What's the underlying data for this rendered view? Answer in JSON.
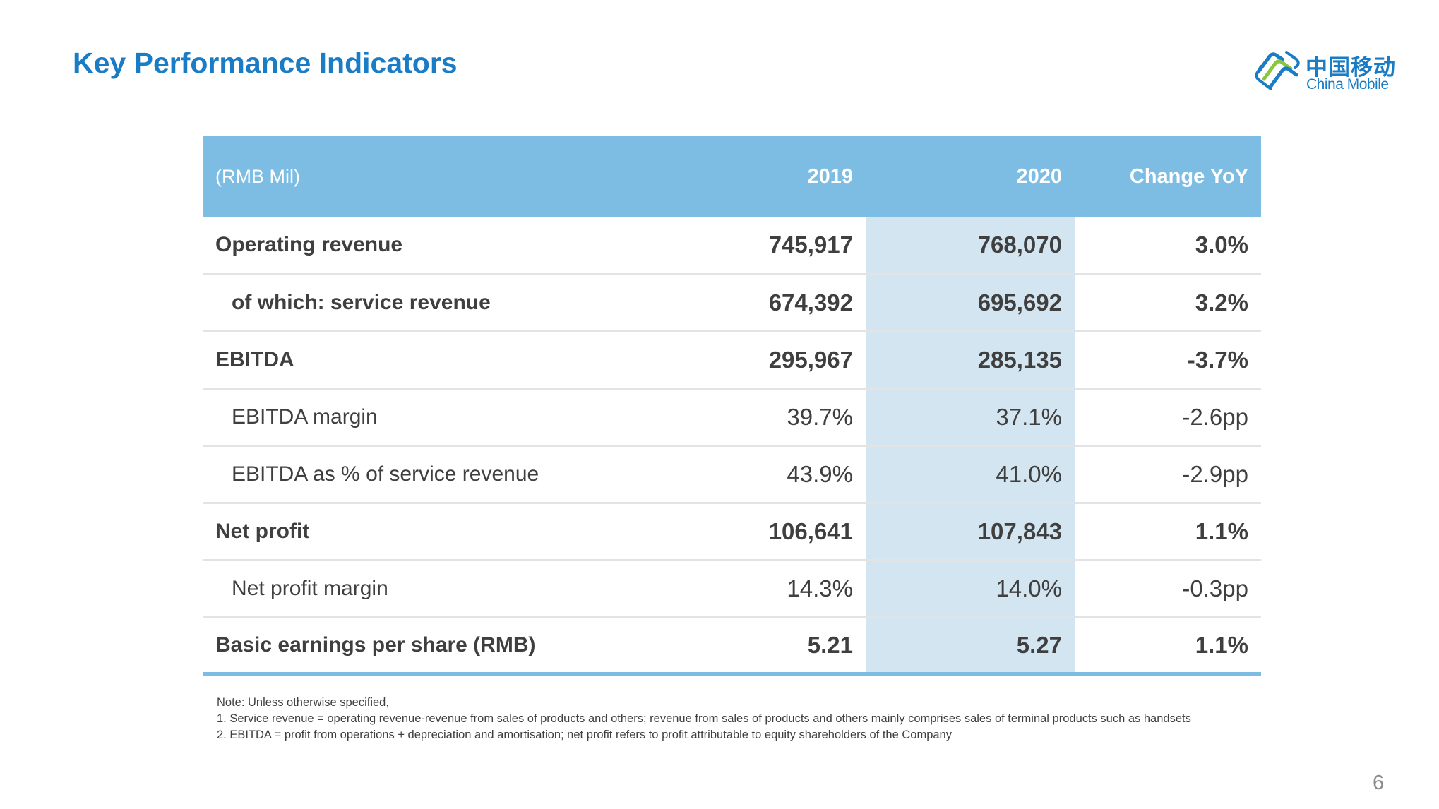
{
  "slide": {
    "title": "Key Performance Indicators",
    "page_number": "6"
  },
  "logo": {
    "chinese_name": "中国移动",
    "english_name": "China Mobile",
    "icon": "china-mobile-logo-icon",
    "color": "#1a7cc5"
  },
  "table": {
    "headers": [
      "(RMB Mil)",
      "2019",
      "2020",
      "Change YoY"
    ],
    "rows": [
      {
        "label": "Operating revenue",
        "y2019": "745,917",
        "y2020": "768,070",
        "change": "3.0%"
      },
      {
        "label": "of which: service revenue",
        "y2019": "674,392",
        "y2020": "695,692",
        "change": "3.2%"
      },
      {
        "label": "EBITDA",
        "y2019": "295,967",
        "y2020": "285,135",
        "change": "-3.7%"
      },
      {
        "label": "EBITDA margin",
        "y2019": "39.7%",
        "y2020": "37.1%",
        "change": "-2.6pp"
      },
      {
        "label": "EBITDA as % of service revenue",
        "y2019": "43.9%",
        "y2020": "41.0%",
        "change": "-2.9pp"
      },
      {
        "label": "Net profit",
        "y2019": "106,641",
        "y2020": "107,843",
        "change": "1.1%"
      },
      {
        "label": "Net profit margin",
        "y2019": "14.3%",
        "y2020": "14.0%",
        "change": "-0.3pp"
      },
      {
        "label": "Basic earnings per share (RMB)",
        "y2019": "5.21",
        "y2020": "5.27",
        "change": "1.1%"
      }
    ]
  },
  "notes": [
    "Note: Unless otherwise specified,",
    "1. Service revenue = operating revenue-revenue from sales of products and others; revenue from sales of products and others mainly comprises sales of terminal products such as handsets",
    "2. EBITDA = profit from operations + depreciation and amortisation; net profit refers to profit attributable to equity shareholders of the Company"
  ],
  "colors": {
    "title": "#1a7cc5",
    "header_background": "#7dbde3",
    "highlight_column": "#d3e5f1",
    "row_divider": "#e3e3e3",
    "body_text": "#3f3f3f"
  }
}
